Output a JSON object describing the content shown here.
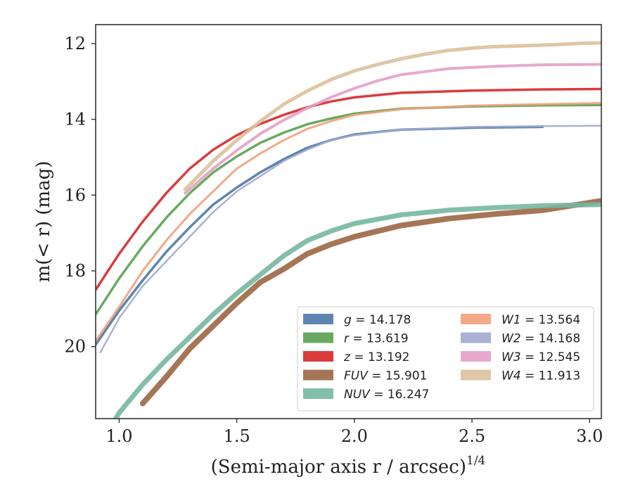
{
  "chart_data": {
    "type": "line",
    "title": "",
    "xlabel": "(Semi-major axis r / arcsec)",
    "xlabel_sup": "1/4",
    "ylabel": "m(< r) (mag)",
    "xlim": [
      0.9,
      3.05
    ],
    "ylim": [
      21.9,
      11.5
    ],
    "y_inverted": true,
    "grid": false,
    "legend_position": "lower-right",
    "x_ticks": [
      "1.0",
      "1.5",
      "2.0",
      "2.5",
      "3.0"
    ],
    "y_ticks": [
      "12",
      "14",
      "16",
      "18",
      "20"
    ],
    "series": [
      {
        "name": "g = 14.178",
        "band": "g",
        "value": "14.178",
        "color": "#4c78a8",
        "x": [
          0.9,
          1.0,
          1.1,
          1.2,
          1.3,
          1.4,
          1.5,
          1.6,
          1.7,
          1.8,
          1.9,
          2.0,
          2.2,
          2.5,
          2.8
        ],
        "y": [
          19.95,
          19.05,
          18.25,
          17.5,
          16.85,
          16.25,
          15.8,
          15.4,
          15.05,
          14.75,
          14.55,
          14.4,
          14.27,
          14.22,
          14.2
        ]
      },
      {
        "name": "r = 13.619",
        "band": "r",
        "value": "13.619",
        "color": "#59a14f",
        "x": [
          0.9,
          1.0,
          1.1,
          1.2,
          1.3,
          1.4,
          1.5,
          1.6,
          1.7,
          1.8,
          1.9,
          2.0,
          2.2,
          2.5,
          2.8,
          3.05
        ],
        "y": [
          19.15,
          18.2,
          17.35,
          16.6,
          15.95,
          15.4,
          14.98,
          14.62,
          14.35,
          14.13,
          13.98,
          13.85,
          13.72,
          13.66,
          13.63,
          13.62
        ]
      },
      {
        "name": "z = 13.192",
        "band": "z",
        "value": "13.192",
        "color": "#d62728",
        "x": [
          0.9,
          1.0,
          1.1,
          1.2,
          1.3,
          1.4,
          1.5,
          1.6,
          1.7,
          1.8,
          1.9,
          2.0,
          2.2,
          2.5,
          2.8,
          3.05
        ],
        "y": [
          18.5,
          17.55,
          16.7,
          15.95,
          15.3,
          14.8,
          14.42,
          14.12,
          13.88,
          13.68,
          13.53,
          13.42,
          13.3,
          13.24,
          13.21,
          13.2
        ]
      },
      {
        "name": "FUV = 15.901",
        "band": "FUV",
        "value": "15.901",
        "color": "#9c6644",
        "x": [
          1.1,
          1.2,
          1.3,
          1.4,
          1.5,
          1.6,
          1.7,
          1.8,
          1.9,
          2.0,
          2.2,
          2.4,
          2.6,
          2.8,
          3.05
        ],
        "y": [
          21.5,
          20.8,
          20.05,
          19.45,
          18.85,
          18.3,
          17.95,
          17.55,
          17.3,
          17.1,
          16.8,
          16.62,
          16.5,
          16.4,
          16.15
        ]
      },
      {
        "name": "NUV = 16.247",
        "band": "NUV",
        "value": "16.247",
        "color": "#76b7a0",
        "x": [
          0.98,
          1.0,
          1.1,
          1.2,
          1.3,
          1.4,
          1.5,
          1.6,
          1.7,
          1.8,
          1.9,
          2.0,
          2.2,
          2.4,
          2.6,
          2.8,
          3.05
        ],
        "y": [
          21.95,
          21.75,
          21.0,
          20.35,
          19.75,
          19.15,
          18.6,
          18.1,
          17.6,
          17.2,
          16.95,
          16.75,
          16.52,
          16.4,
          16.33,
          16.28,
          16.25
        ]
      },
      {
        "name": "W1 = 13.564",
        "band": "W1",
        "value": "13.564",
        "color": "#f2a07b",
        "x": [
          0.9,
          1.0,
          1.1,
          1.2,
          1.3,
          1.4,
          1.5,
          1.6,
          1.7,
          1.8,
          1.9,
          2.0,
          2.2,
          2.5,
          2.8,
          3.05
        ],
        "y": [
          19.85,
          18.95,
          18.0,
          17.2,
          16.5,
          15.9,
          15.3,
          14.9,
          14.55,
          14.25,
          14.05,
          13.88,
          13.73,
          13.64,
          13.6,
          13.57
        ]
      },
      {
        "name": "W2 = 14.168",
        "band": "W2",
        "value": "14.168",
        "color": "#a0aacf",
        "x": [
          0.92,
          1.0,
          1.1,
          1.2,
          1.3,
          1.4,
          1.5,
          1.6,
          1.7,
          1.8,
          1.9,
          2.0,
          2.2,
          2.5,
          2.8,
          3.05
        ],
        "y": [
          20.15,
          19.25,
          18.4,
          17.75,
          17.1,
          16.45,
          15.9,
          15.5,
          15.1,
          14.8,
          14.55,
          14.42,
          14.27,
          14.2,
          14.18,
          14.17
        ]
      },
      {
        "name": "W3 = 12.545",
        "band": "W3",
        "value": "12.545",
        "color": "#e4a0c8",
        "x": [
          1.28,
          1.4,
          1.5,
          1.6,
          1.7,
          1.8,
          1.9,
          2.0,
          2.1,
          2.2,
          2.4,
          2.6,
          2.8,
          3.05
        ],
        "y": [
          15.95,
          15.3,
          14.82,
          14.38,
          14.02,
          13.7,
          13.42,
          13.18,
          12.98,
          12.82,
          12.66,
          12.6,
          12.56,
          12.55
        ]
      },
      {
        "name": "W4 = 11.913",
        "band": "W4",
        "value": "11.913",
        "color": "#dcc09c",
        "x": [
          1.28,
          1.4,
          1.5,
          1.6,
          1.7,
          1.8,
          1.9,
          2.0,
          2.1,
          2.2,
          2.3,
          2.4,
          2.5,
          2.6,
          2.7,
          2.85,
          2.95,
          3.05
        ],
        "y": [
          15.85,
          15.1,
          14.55,
          14.05,
          13.6,
          13.25,
          12.95,
          12.72,
          12.55,
          12.4,
          12.28,
          12.18,
          12.12,
          12.08,
          12.06,
          12.03,
          12.0,
          11.98
        ]
      }
    ]
  }
}
